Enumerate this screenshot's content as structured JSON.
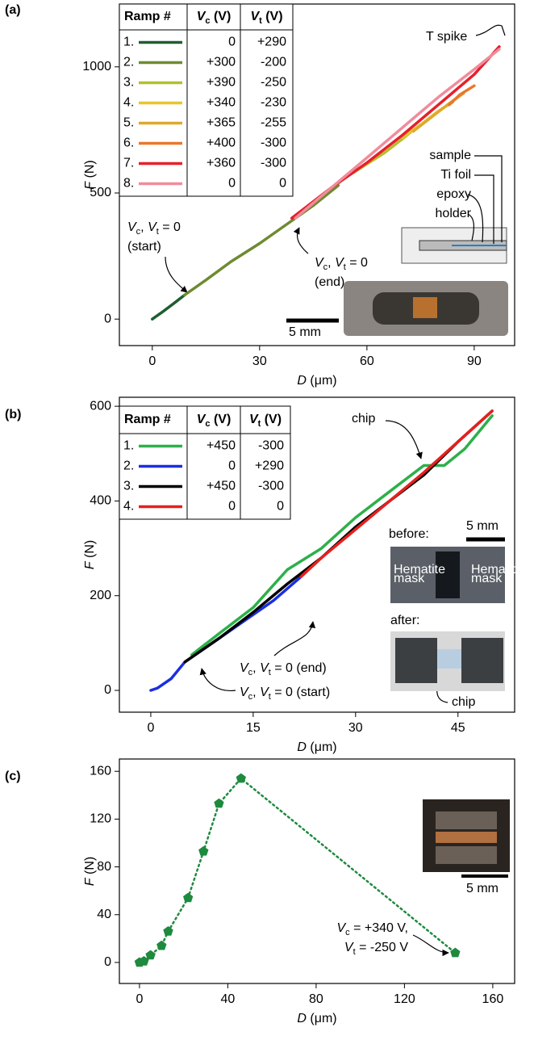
{
  "chart_data": [
    {
      "type": "line",
      "panel_label": "(a)",
      "xlabel": [
        {
          "i": "D"
        },
        {
          "t": " (μm)"
        }
      ],
      "ylabel": [
        {
          "i": "F"
        },
        {
          "t": " (N)"
        }
      ],
      "xlim": [
        -9.2,
        101.3
      ],
      "ylim": [
        -105,
        1249
      ],
      "xticks": [
        0,
        30,
        60,
        90
      ],
      "yticks": [
        0,
        500,
        1000
      ],
      "legend_columns": [
        [
          {
            "b": "Ramp #"
          }
        ],
        [
          {
            "bi": "V"
          },
          {
            "bsub": "c"
          },
          {
            "b": " (V)"
          }
        ],
        [
          {
            "bi": "V"
          },
          {
            "bsub": "t"
          },
          {
            "b": " (V)"
          }
        ]
      ],
      "series": [
        {
          "name": "1.",
          "vc": "0",
          "vt": "+290",
          "color": "#1f5e30",
          "x": [
            0,
            3,
            6,
            9
          ],
          "values": [
            0,
            30,
            62,
            95
          ]
        },
        {
          "name": "2.",
          "vc": "+300",
          "vt": "-200",
          "color": "#6e8b30",
          "x": [
            9,
            15,
            22,
            30,
            38,
            45,
            52
          ],
          "values": [
            95,
            155,
            228,
            300,
            380,
            450,
            530
          ]
        },
        {
          "name": "3.",
          "vc": "+390",
          "vt": "-250",
          "color": "#b5bf2c",
          "x": [
            50,
            55,
            60,
            65,
            70,
            73
          ],
          "values": [
            520,
            570,
            615,
            660,
            715,
            750
          ]
        },
        {
          "name": "4.",
          "vc": "+340",
          "vt": "-230",
          "color": "#e8c52c",
          "x": [
            70,
            75,
            80,
            84
          ],
          "values": [
            720,
            770,
            825,
            860
          ]
        },
        {
          "name": "5.",
          "vc": "+365",
          "vt": "-255",
          "color": "#dfa92c",
          "x": [
            73,
            78,
            83,
            87
          ],
          "values": [
            745,
            800,
            855,
            895
          ]
        },
        {
          "name": "6.",
          "vc": "+400",
          "vt": "-300",
          "color": "#e8792c",
          "x": [
            83,
            86,
            90
          ],
          "values": [
            850,
            890,
            925
          ]
        },
        {
          "name": "7.",
          "vc": "+360",
          "vt": "-300",
          "color": "#e5202c",
          "x": [
            39,
            50,
            60,
            70,
            80,
            90,
            97
          ],
          "values": [
            400,
            520,
            620,
            730,
            850,
            970,
            1080
          ]
        },
        {
          "name": "8.",
          "vc": "0",
          "vt": "0",
          "color": "#f08c9c",
          "x": [
            97,
            90,
            80,
            70,
            60,
            50,
            40
          ],
          "values": [
            1070,
            990,
            880,
            760,
            640,
            520,
            400
          ]
        }
      ],
      "annotations": [
        {
          "lines": [
            [
              {
                "i": "V"
              },
              {
                "sub": "c"
              },
              {
                "t": ", "
              },
              {
                "i": "V"
              },
              {
                "sub": "t"
              },
              {
                "t": " = 0"
              }
            ],
            [
              {
                "t": "(start)"
              }
            ]
          ]
        },
        {
          "lines": [
            [
              {
                "i": "V"
              },
              {
                "sub": "c"
              },
              {
                "t": ", "
              },
              {
                "i": "V"
              },
              {
                "sub": "t"
              },
              {
                "t": " = 0"
              }
            ],
            [
              {
                "t": "(end)"
              }
            ]
          ]
        },
        {
          "lines": [
            [
              {
                "t": "T spike"
              }
            ]
          ]
        },
        {
          "lines": [
            [
              {
                "t": "sample"
              }
            ],
            [
              {
                "t": "Ti foil"
              }
            ],
            [
              {
                "t": "epoxy"
              }
            ],
            [
              {
                "t": "holder"
              }
            ]
          ]
        },
        {
          "lines": [
            [
              {
                "t": "5 mm"
              }
            ]
          ]
        }
      ]
    },
    {
      "type": "line",
      "panel_label": "(b)",
      "xlabel": [
        {
          "i": "D"
        },
        {
          "t": " (μm)"
        }
      ],
      "ylabel": [
        {
          "i": "F"
        },
        {
          "t": " (N)"
        }
      ],
      "xlim": [
        -4.6,
        53.3
      ],
      "ylim": [
        -46,
        619
      ],
      "xticks": [
        0,
        15,
        30,
        45
      ],
      "yticks": [
        0,
        200,
        400,
        600
      ],
      "legend_columns": [
        [
          {
            "b": "Ramp #"
          }
        ],
        [
          {
            "bi": "V"
          },
          {
            "bsub": "c"
          },
          {
            "b": " (V)"
          }
        ],
        [
          {
            "bi": "V"
          },
          {
            "bsub": "t"
          },
          {
            "b": " (V)"
          }
        ]
      ],
      "series": [
        {
          "name": "1.",
          "vc": "+450",
          "vt": "-300",
          "color": "#2db04a",
          "x": [
            6,
            10,
            15,
            20,
            25,
            30,
            35,
            40,
            43,
            46,
            50
          ],
          "values": [
            75,
            120,
            175,
            255,
            300,
            365,
            420,
            475,
            475,
            510,
            580
          ]
        },
        {
          "name": "2.",
          "vc": "0",
          "vt": "+290",
          "color": "#1a2fe0",
          "x": [
            22,
            18,
            14,
            10,
            7,
            5,
            3,
            1,
            0
          ],
          "values": [
            240,
            190,
            150,
            110,
            80,
            60,
            25,
            5,
            0
          ]
        },
        {
          "name": "3.",
          "vc": "+450",
          "vt": "-300",
          "color": "#000000",
          "x": [
            5,
            10,
            15,
            20,
            25,
            30,
            35,
            40,
            45,
            50
          ],
          "values": [
            60,
            110,
            165,
            225,
            280,
            345,
            400,
            455,
            525,
            590
          ]
        },
        {
          "name": "4.",
          "vc": "0",
          "vt": "0",
          "color": "#e5201e",
          "x": [
            50,
            45,
            40,
            35,
            30,
            25,
            22
          ],
          "values": [
            590,
            525,
            460,
            400,
            340,
            280,
            240
          ]
        }
      ],
      "annotations": [
        {
          "lines": [
            [
              {
                "t": "chip"
              }
            ]
          ]
        },
        {
          "lines": [
            [
              {
                "t": "before:"
              }
            ]
          ]
        },
        {
          "lines": [
            [
              {
                "t": "5 mm"
              }
            ]
          ]
        },
        {
          "lines": [
            [
              {
                "t": "after:"
              }
            ]
          ]
        },
        {
          "lines": [
            [
              {
                "t": "chip"
              }
            ]
          ]
        },
        {
          "lines": [
            [
              {
                "i": "V"
              },
              {
                "sub": "c"
              },
              {
                "t": ", "
              },
              {
                "i": "V"
              },
              {
                "sub": "t"
              },
              {
                "t": " = 0 (end)"
              }
            ]
          ]
        },
        {
          "lines": [
            [
              {
                "i": "V"
              },
              {
                "sub": "c"
              },
              {
                "t": ", "
              },
              {
                "i": "V"
              },
              {
                "sub": "t"
              },
              {
                "t": " = 0 (start)"
              }
            ]
          ]
        },
        {
          "lines": [
            [
              {
                "t": "Hematite"
              }
            ],
            [
              {
                "t": "mask"
              }
            ]
          ]
        },
        {
          "lines": [
            [
              {
                "t": "Hematite"
              }
            ],
            [
              {
                "t": "mask"
              }
            ]
          ]
        }
      ]
    },
    {
      "type": "line",
      "panel_label": "(c)",
      "marker": "pentagon",
      "linestyle": "dotted",
      "xlabel": [
        {
          "i": "D"
        },
        {
          "t": " (μm)"
        }
      ],
      "ylabel": [
        {
          "i": "F"
        },
        {
          "t": " (N)"
        }
      ],
      "xlim": [
        -9.1,
        169.9
      ],
      "ylim": [
        -17.6,
        170.3
      ],
      "xticks": [
        0,
        40,
        80,
        120,
        160
      ],
      "yticks": [
        0,
        40,
        80,
        120,
        160
      ],
      "color": "#1e8a3e",
      "x": [
        0,
        2,
        5,
        10,
        13,
        22,
        29,
        36,
        46,
        143
      ],
      "values": [
        0,
        1,
        6,
        14,
        26,
        54,
        93,
        133,
        154,
        8
      ],
      "annotations": [
        {
          "lines": [
            [
              {
                "i": "V"
              },
              {
                "sub": "c"
              },
              {
                "t": " = +340 V,"
              }
            ],
            [
              {
                "i": "V"
              },
              {
                "sub": "t"
              },
              {
                "t": " = -250 V"
              }
            ]
          ]
        },
        {
          "lines": [
            [
              {
                "t": "5 mm"
              }
            ]
          ]
        }
      ]
    }
  ]
}
